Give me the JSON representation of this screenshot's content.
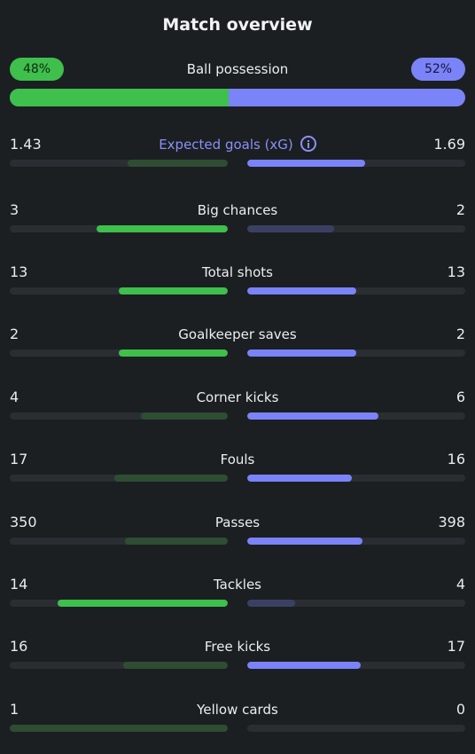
{
  "header": {
    "title": "Match overview"
  },
  "possession": {
    "label": "Ball possession",
    "home": "48%",
    "away": "52%",
    "home_pct": 48,
    "away_pct": 52
  },
  "stats": [
    {
      "label": "Expected goals (xG)",
      "home": "1.43",
      "away": "1.69",
      "home_frac": 0.46,
      "away_frac": 0.54,
      "info": true
    },
    {
      "label": "Big chances",
      "home": "3",
      "away": "2",
      "home_frac": 0.6,
      "away_frac": 0.4
    },
    {
      "label": "Total shots",
      "home": "13",
      "away": "13",
      "home_frac": 0.5,
      "away_frac": 0.5
    },
    {
      "label": "Goalkeeper saves",
      "home": "2",
      "away": "2",
      "home_frac": 0.5,
      "away_frac": 0.5
    },
    {
      "label": "Corner kicks",
      "home": "4",
      "away": "6",
      "home_frac": 0.4,
      "away_frac": 0.6
    },
    {
      "label": "Fouls",
      "home": "17",
      "away": "16",
      "home_frac": 0.52,
      "away_frac": 0.48
    },
    {
      "label": "Passes",
      "home": "350",
      "away": "398",
      "home_frac": 0.47,
      "away_frac": 0.53
    },
    {
      "label": "Tackles",
      "home": "14",
      "away": "4",
      "home_frac": 0.78,
      "away_frac": 0.22
    },
    {
      "label": "Free kicks",
      "home": "16",
      "away": "17",
      "home_frac": 0.48,
      "away_frac": 0.52
    },
    {
      "label": "Yellow cards",
      "home": "1",
      "away": "0",
      "home_frac": 1.0,
      "away_frac": 0.0
    }
  ],
  "highlight": [
    {
      "home": "lose",
      "away": "win"
    },
    {
      "home": "win",
      "away": "lose"
    },
    {
      "home": "win",
      "away": "win"
    },
    {
      "home": "win",
      "away": "win"
    },
    {
      "home": "lose",
      "away": "win"
    },
    {
      "home": "lose",
      "away": "win"
    },
    {
      "home": "lose",
      "away": "win"
    },
    {
      "home": "win",
      "away": "lose"
    },
    {
      "home": "lose",
      "away": "win"
    },
    {
      "home": "lose",
      "away": "win"
    }
  ],
  "colors": {
    "home": "#3fbf4c",
    "away": "#7b83f8",
    "background": "#1b1f22"
  },
  "icons": {
    "xg_info": "info-icon"
  }
}
